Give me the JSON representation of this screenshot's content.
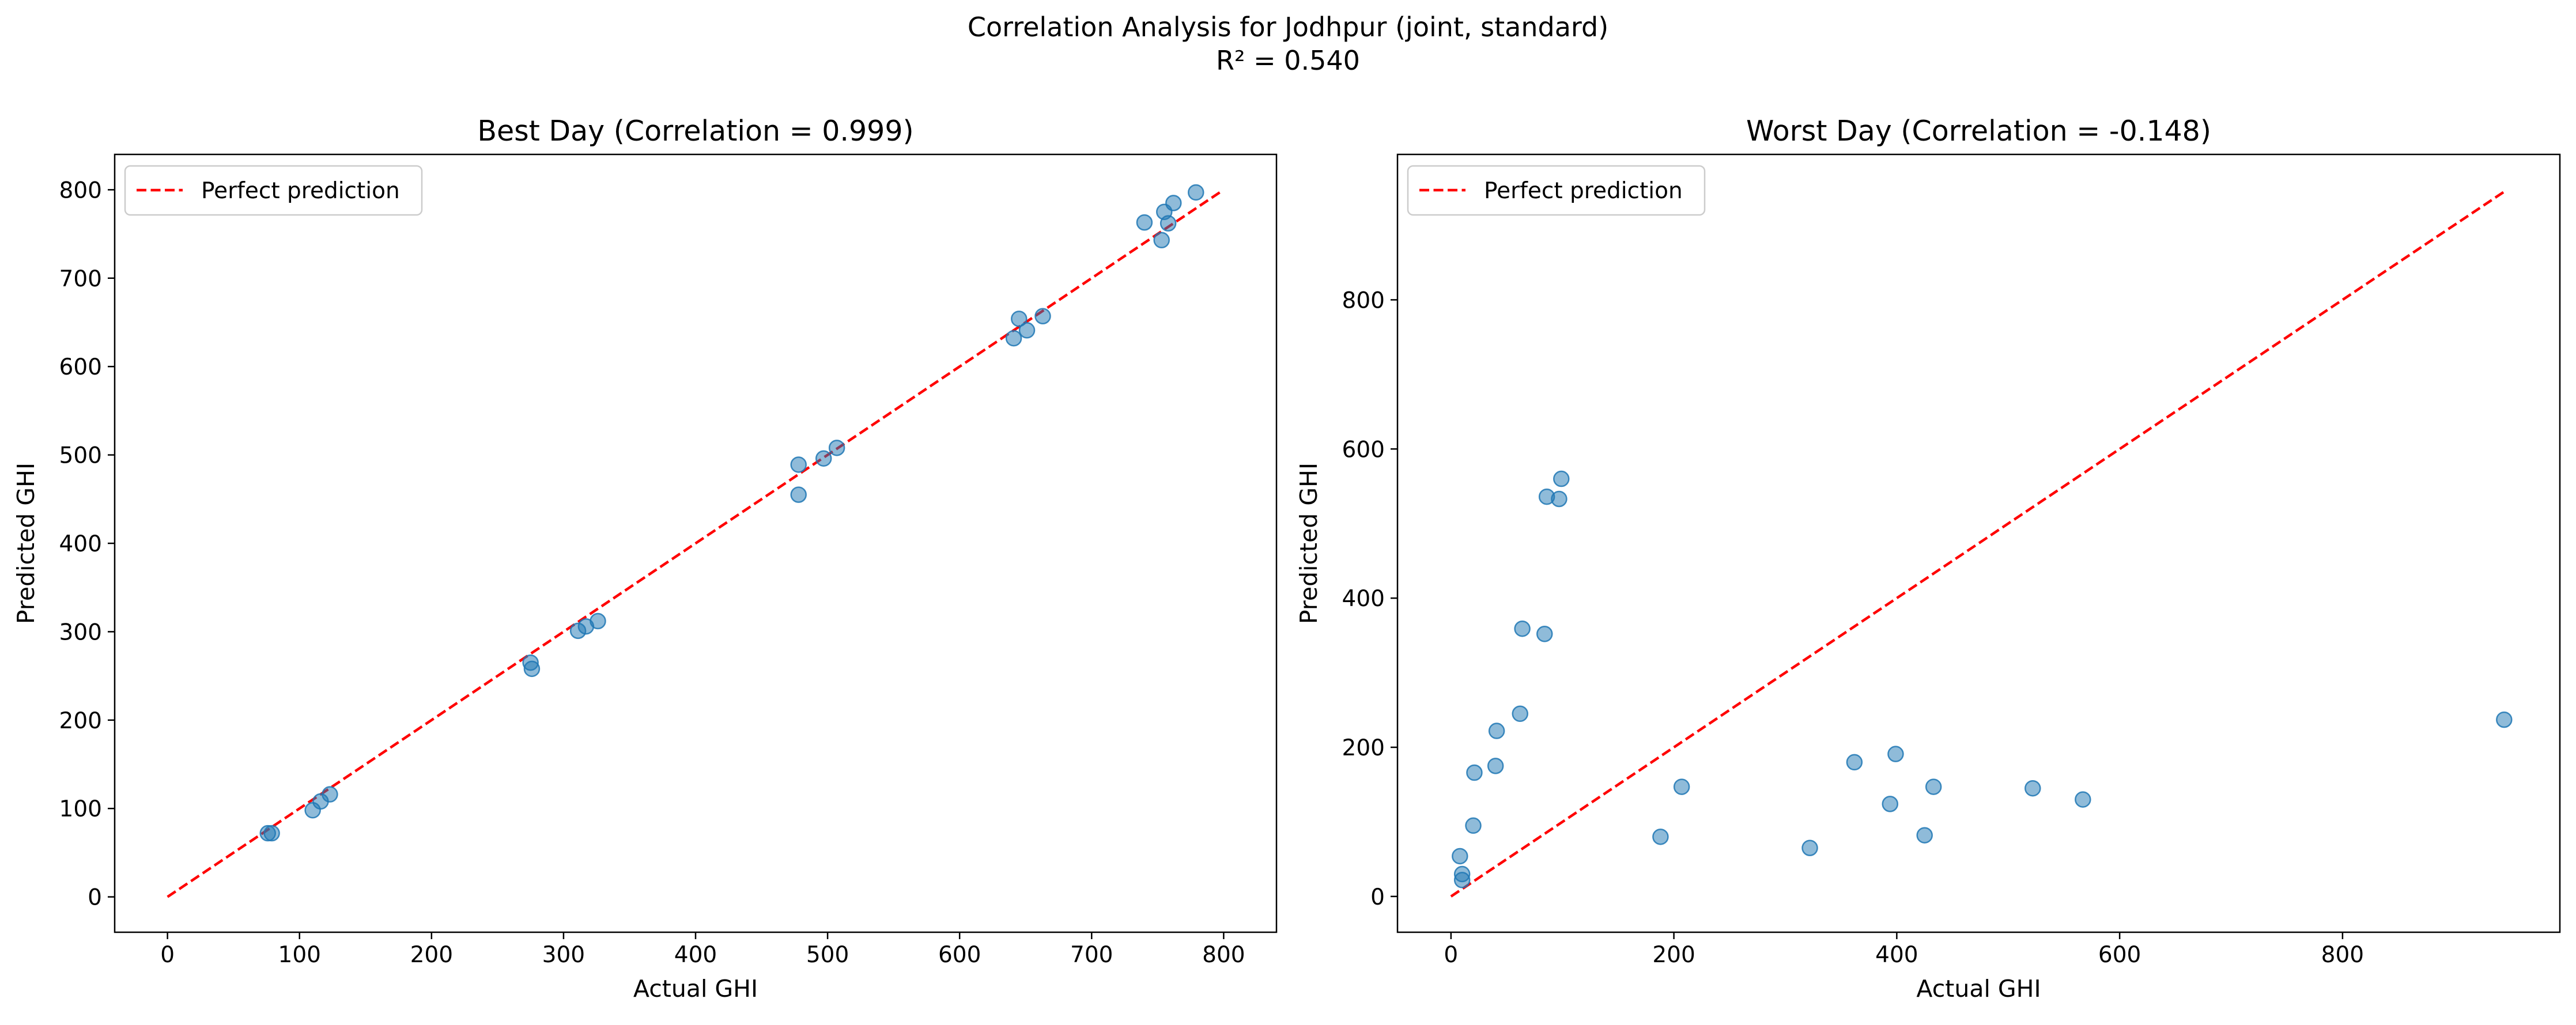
{
  "figure": {
    "title_line1": "Correlation Analysis for Jodhpur (joint, standard)",
    "title_line2": "R² = 0.540"
  },
  "chart_data": [
    {
      "type": "scatter",
      "title": "Best Day (Correlation = 0.999)",
      "xlabel": "Actual GHI",
      "ylabel": "Predicted GHI",
      "xlim": [
        -40,
        840
      ],
      "ylim": [
        -40,
        840
      ],
      "xticks": [
        0,
        100,
        200,
        300,
        400,
        500,
        600,
        700,
        800
      ],
      "yticks": [
        0,
        100,
        200,
        300,
        400,
        500,
        600,
        700,
        800
      ],
      "legend": {
        "position": "top-left",
        "entries": [
          "Perfect prediction"
        ]
      },
      "reference_line": {
        "label": "Perfect prediction",
        "x": [
          0,
          797
        ],
        "y": [
          0,
          797
        ],
        "style": "dashed",
        "color": "#ff0000"
      },
      "marker_color": "#1f77b4",
      "points": {
        "x": [
          76,
          79,
          110,
          116,
          123,
          275,
          276,
          311,
          317,
          326,
          478,
          478,
          497,
          507,
          641,
          645,
          651,
          663,
          740,
          753,
          755,
          758,
          762,
          779
        ],
        "y": [
          72,
          72,
          98,
          108,
          116,
          265,
          258,
          301,
          306,
          312,
          489,
          455,
          496,
          508,
          632,
          654,
          641,
          657,
          763,
          743,
          775,
          762,
          785,
          797
        ]
      }
    },
    {
      "type": "scatter",
      "title": "Worst Day (Correlation = -0.148)",
      "xlabel": "Actual GHI",
      "ylabel": "Predicted GHI",
      "xlim": [
        -48,
        995
      ],
      "ylim": [
        -48,
        995
      ],
      "xticks": [
        0,
        200,
        400,
        600,
        800
      ],
      "yticks": [
        0,
        200,
        400,
        600,
        800
      ],
      "legend": {
        "position": "top-left",
        "entries": [
          "Perfect prediction"
        ]
      },
      "reference_line": {
        "label": "Perfect prediction",
        "x": [
          0,
          947
        ],
        "y": [
          0,
          947
        ],
        "style": "dashed",
        "color": "#ff0000"
      },
      "marker_color": "#1f77b4",
      "points": {
        "x": [
          8,
          10,
          10,
          20,
          21,
          40,
          41,
          62,
          64,
          84,
          86,
          97,
          99,
          188,
          207,
          322,
          362,
          394,
          399,
          425,
          433,
          522,
          567,
          945
        ],
        "y": [
          54,
          30,
          22,
          95,
          166,
          175,
          222,
          245,
          359,
          352,
          536,
          533,
          560,
          80,
          147,
          65,
          180,
          124,
          191,
          82,
          147,
          145,
          130,
          237
        ]
      }
    }
  ]
}
